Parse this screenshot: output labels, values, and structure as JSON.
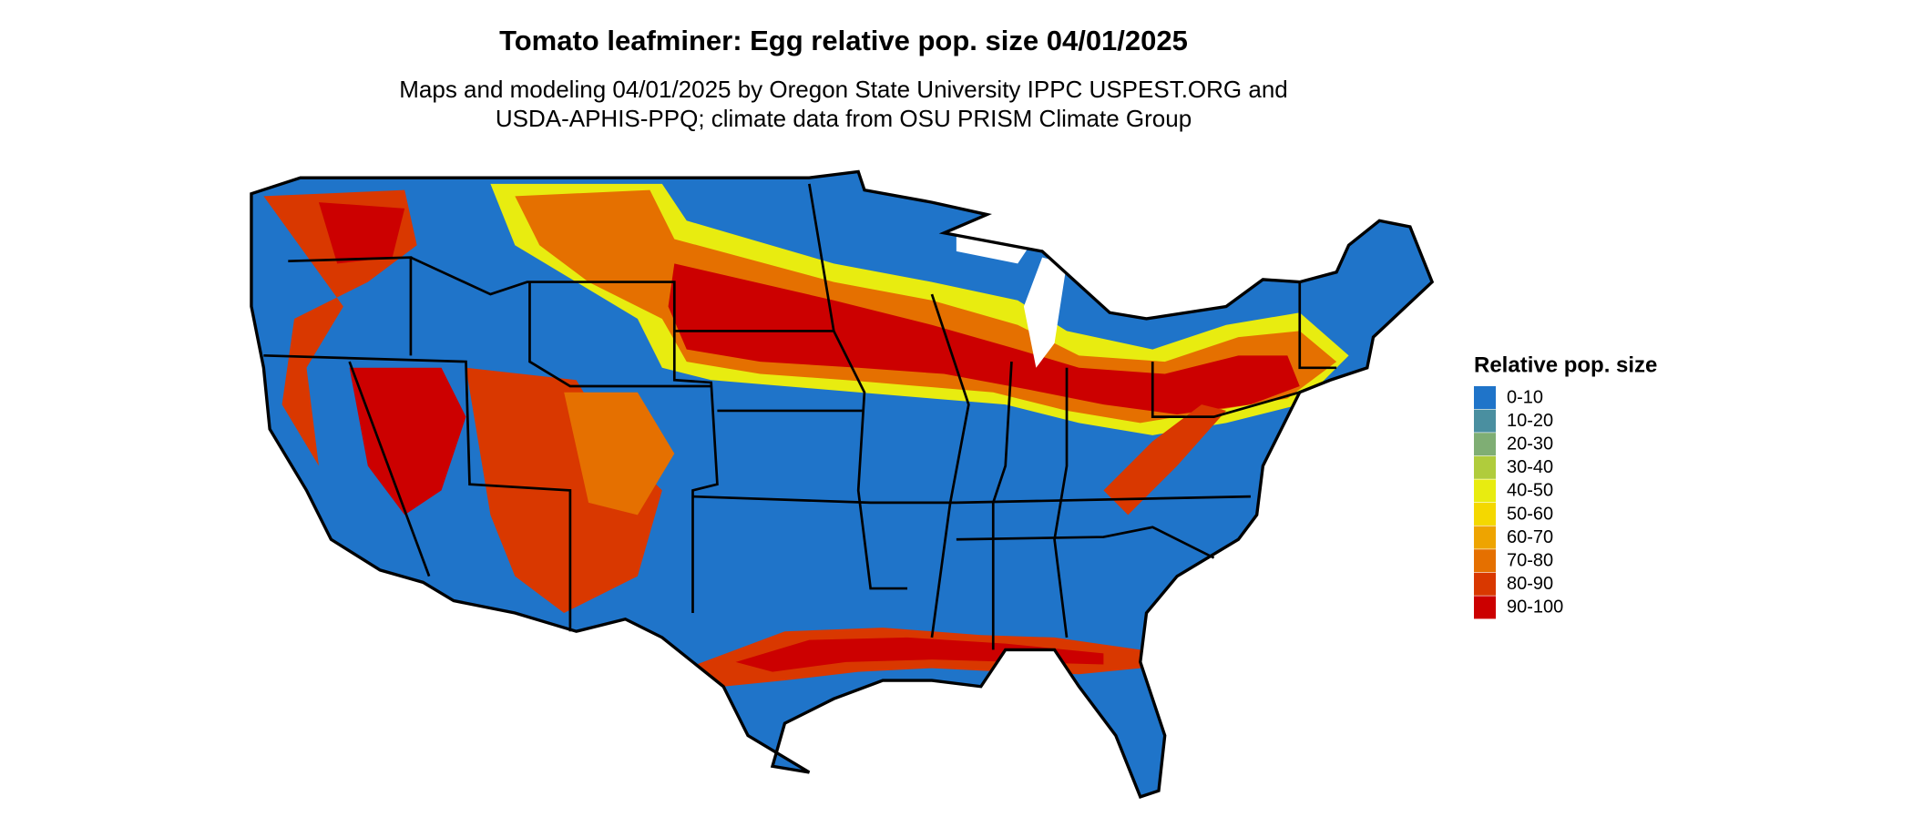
{
  "map": {
    "title": "Tomato leafminer: Egg relative pop. size 04/01/2025",
    "subtitle": [
      "Maps and modeling 04/01/2025 by Oregon State University IPPC USPEST.ORG and",
      "USDA-APHIS-PPQ; climate data from OSU PRISM Climate Group"
    ],
    "legend": {
      "title": "Relative pop. size",
      "items": [
        {
          "label": "0-10",
          "color": "#1f74c9"
        },
        {
          "label": "10-20",
          "color": "#4a8fa0"
        },
        {
          "label": "20-30",
          "color": "#7fae74"
        },
        {
          "label": "30-40",
          "color": "#b0cc3c"
        },
        {
          "label": "40-50",
          "color": "#e8ec10"
        },
        {
          "label": "50-60",
          "color": "#f4d800"
        },
        {
          "label": "60-70",
          "color": "#eea400"
        },
        {
          "label": "70-80",
          "color": "#e57000"
        },
        {
          "label": "80-90",
          "color": "#d93800"
        },
        {
          "label": "90-100",
          "color": "#cc0000"
        }
      ]
    }
  }
}
